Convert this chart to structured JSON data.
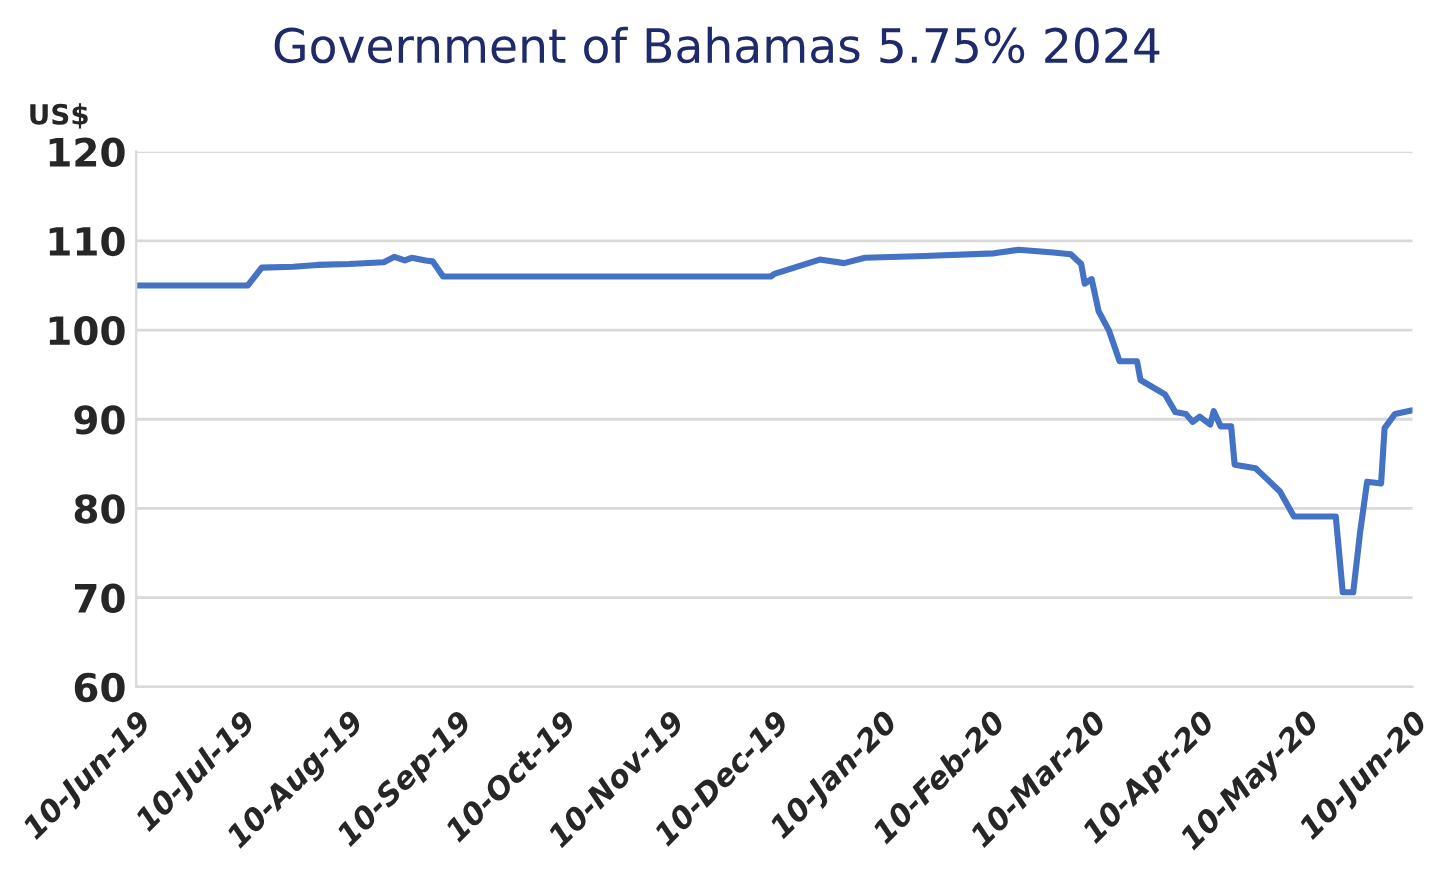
{
  "chart_data": {
    "type": "line",
    "title": "Government of Bahamas 5.75% 2024",
    "ylabel": "US$",
    "x": [
      "2019-06-10",
      "2019-07-12",
      "2019-07-16",
      "2019-07-25",
      "2019-08-01",
      "2019-08-10",
      "2019-08-20",
      "2019-08-23",
      "2019-08-26",
      "2019-08-28",
      "2019-09-01",
      "2019-09-03",
      "2019-09-06",
      "2019-12-09",
      "2019-12-10",
      "2019-12-23",
      "2019-12-30",
      "2020-01-05",
      "2020-01-22",
      "2020-02-11",
      "2020-02-18",
      "2020-02-28",
      "2020-03-04",
      "2020-03-07",
      "2020-03-08",
      "2020-03-10",
      "2020-03-12",
      "2020-03-15",
      "2020-03-18",
      "2020-03-23",
      "2020-03-24",
      "2020-03-31",
      "2020-04-03",
      "2020-04-06",
      "2020-04-08",
      "2020-04-10",
      "2020-04-13",
      "2020-04-14",
      "2020-04-16",
      "2020-04-19",
      "2020-04-20",
      "2020-04-26",
      "2020-04-29",
      "2020-05-03",
      "2020-05-07",
      "2020-05-19",
      "2020-05-21",
      "2020-05-24",
      "2020-05-26",
      "2020-05-28",
      "2020-06-01",
      "2020-06-02",
      "2020-06-05",
      "2020-06-10"
    ],
    "series": [
      {
        "color": "#4472c4",
        "values": [
          105,
          105,
          107,
          107.1,
          107.3,
          107.4,
          107.6,
          108.2,
          107.8,
          108.1,
          107.8,
          107.7,
          106,
          106,
          106.3,
          107.9,
          107.5,
          108.1,
          108.3,
          108.6,
          109,
          108.7,
          108.5,
          107.4,
          105.2,
          105.7,
          102.1,
          99.9,
          96.5,
          96.5,
          94.4,
          92.8,
          90.8,
          90.6,
          89.7,
          90.3,
          89.4,
          90.9,
          89.2,
          89.2,
          84.9,
          84.5,
          83.4,
          81.9,
          79.1,
          79.1,
          70.6,
          70.6,
          77.4,
          83,
          82.8,
          89,
          90.6,
          91
        ]
      }
    ],
    "xlim": [
      "2019-06-10",
      "2020-06-10"
    ],
    "xticks": [
      {
        "value": "2019-06-10",
        "label": "10-Jun-19"
      },
      {
        "value": "2019-07-10",
        "label": "10-Jul-19"
      },
      {
        "value": "2019-08-10",
        "label": "10-Aug-19"
      },
      {
        "value": "2019-09-10",
        "label": "10-Sep-19"
      },
      {
        "value": "2019-10-10",
        "label": "10-Oct-19"
      },
      {
        "value": "2019-11-10",
        "label": "10-Nov-19"
      },
      {
        "value": "2019-12-10",
        "label": "10-Dec-19"
      },
      {
        "value": "2020-01-10",
        "label": "10-Jan-20"
      },
      {
        "value": "2020-02-10",
        "label": "10-Feb-20"
      },
      {
        "value": "2020-03-10",
        "label": "10-Mar-20"
      },
      {
        "value": "2020-04-10",
        "label": "10-Apr-20"
      },
      {
        "value": "2020-05-10",
        "label": "10-May-20"
      },
      {
        "value": "2020-06-10",
        "label": "10-Jun-20"
      }
    ],
    "ylim": [
      60,
      120
    ],
    "yticks": [
      60,
      70,
      80,
      90,
      100,
      110,
      120
    ],
    "grid": "y",
    "legend": false,
    "marker": "none",
    "line_style": "solid"
  }
}
